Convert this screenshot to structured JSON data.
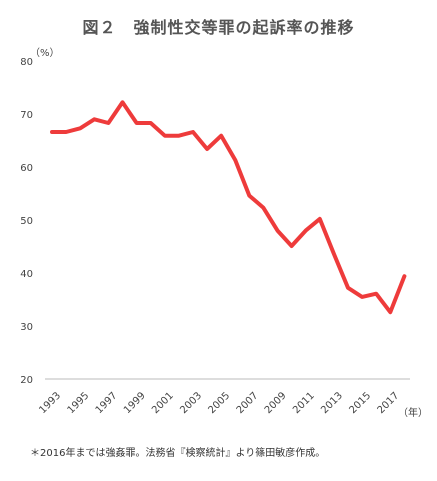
{
  "chart_data": {
    "type": "line",
    "title": "図２　強制性交等罪の起訴率の推移",
    "y_unit": "（%）",
    "x_unit": "（年）",
    "note": "＊2016年までは強姦罪。法務省『検察統計』より篠田敏彦作成。",
    "ylim": [
      20,
      80
    ],
    "yticks": [
      20,
      30,
      40,
      50,
      60,
      70,
      80
    ],
    "xticks": [
      "1993",
      "1995",
      "1997",
      "1999",
      "2001",
      "2003",
      "2005",
      "2007",
      "2009",
      "2011",
      "2013",
      "2015",
      "2017"
    ],
    "grid": false,
    "legend": "none",
    "color": "#ee3b3b",
    "series": [
      {
        "x": [
          1993,
          1994,
          1995,
          1996,
          1997,
          1998,
          1999,
          2000,
          2001,
          2002,
          2003,
          2004,
          2005,
          2006,
          2007,
          2008,
          2009,
          2010,
          2011,
          2012,
          2013,
          2014,
          2015,
          2016,
          2017,
          2018
        ],
        "values": [
          66.6,
          66.6,
          67.3,
          69.0,
          68.3,
          72.2,
          68.3,
          68.3,
          65.9,
          65.9,
          66.6,
          63.4,
          65.9,
          61.3,
          54.6,
          52.3,
          48.0,
          45.1,
          48.0,
          50.2,
          43.6,
          37.2,
          35.5,
          36.1,
          32.6,
          39.4
        ]
      }
    ]
  }
}
